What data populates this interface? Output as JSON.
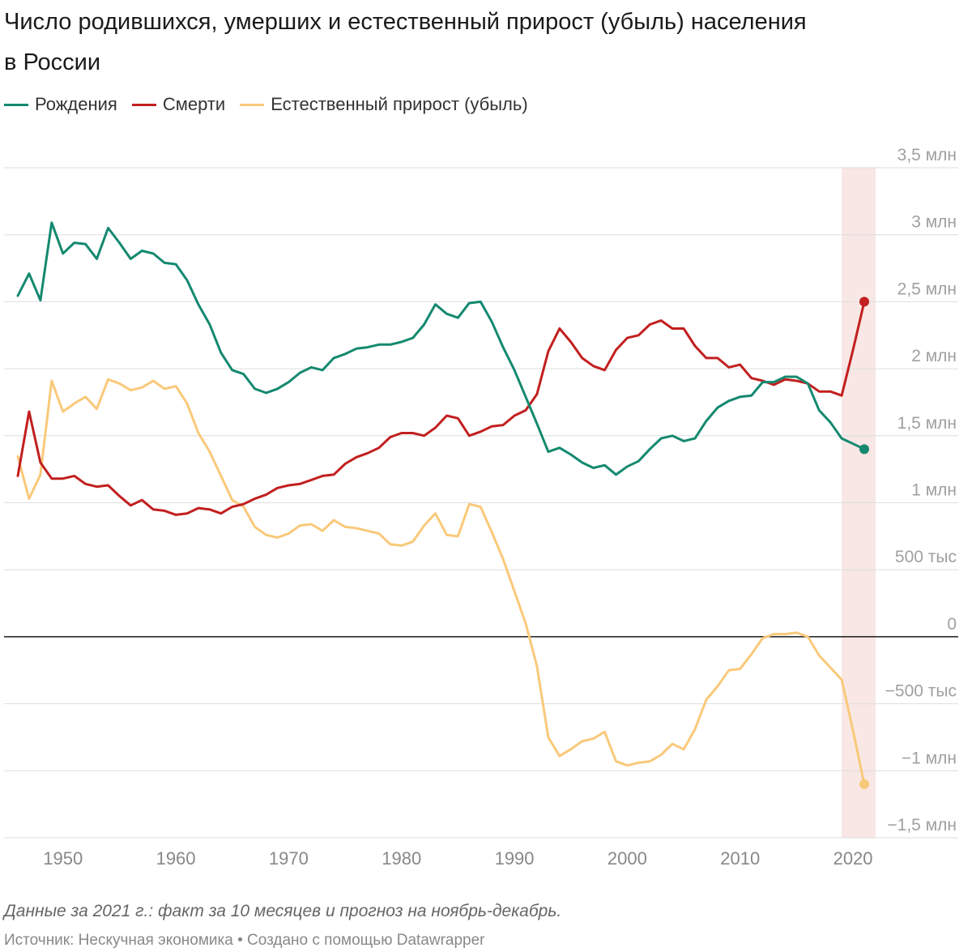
{
  "title": "Число родившихся, умерших и естественный прирост (убыль) населения в России",
  "legend": [
    {
      "label": "Рождения",
      "color": "#14896f"
    },
    {
      "label": "Смерти",
      "color": "#c21f1f"
    },
    {
      "label": "Естественный прирост (убыль)",
      "color": "#f9c97a"
    }
  ],
  "note": "Данные за 2021 г.: факт за 10 месяцев и прогноз на ноябрь-декабрь.",
  "source": "Источник: Нескучная экономика • Создано с помощью Datawrapper",
  "chart_data": {
    "type": "line",
    "x_range": [
      1946,
      2021
    ],
    "ylim": [
      -1500000,
      3500000
    ],
    "y_ticks": [
      {
        "value": 3500000,
        "label": "3,5 млн"
      },
      {
        "value": 3000000,
        "label": "3 млн"
      },
      {
        "value": 2500000,
        "label": "2,5 млн"
      },
      {
        "value": 2000000,
        "label": "2 млн"
      },
      {
        "value": 1500000,
        "label": "1,5 млн"
      },
      {
        "value": 1000000,
        "label": "1 млн"
      },
      {
        "value": 500000,
        "label": "500 тыс"
      },
      {
        "value": 0,
        "label": "0"
      },
      {
        "value": -500000,
        "label": "−500 тыс"
      },
      {
        "value": -1000000,
        "label": "−1 млн"
      },
      {
        "value": -1500000,
        "label": "−1,5 млн"
      }
    ],
    "x_ticks": [
      1950,
      1960,
      1970,
      1980,
      1990,
      2000,
      2010,
      2020
    ],
    "highlight_range": [
      2019,
      2022
    ],
    "grid": true,
    "legend_position": "top-left",
    "series": [
      {
        "name": "Рождения",
        "color": "#14896f",
        "x": [
          1946,
          1947,
          1948,
          1949,
          1950,
          1951,
          1952,
          1953,
          1954,
          1955,
          1956,
          1957,
          1958,
          1959,
          1960,
          1961,
          1962,
          1963,
          1964,
          1965,
          1966,
          1967,
          1968,
          1969,
          1970,
          1971,
          1972,
          1973,
          1974,
          1975,
          1976,
          1977,
          1978,
          1979,
          1980,
          1981,
          1982,
          1983,
          1984,
          1985,
          1986,
          1987,
          1988,
          1989,
          1990,
          1991,
          1992,
          1993,
          1994,
          1995,
          1996,
          1997,
          1998,
          1999,
          2000,
          2001,
          2002,
          2003,
          2004,
          2005,
          2006,
          2007,
          2008,
          2009,
          2010,
          2011,
          2012,
          2013,
          2014,
          2015,
          2016,
          2017,
          2018,
          2019,
          2020,
          2021
        ],
        "values": [
          2545000,
          2710000,
          2510000,
          3090000,
          2860000,
          2940000,
          2930000,
          2820000,
          3050000,
          2940000,
          2820000,
          2880000,
          2860000,
          2790000,
          2780000,
          2660000,
          2480000,
          2330000,
          2120000,
          1990000,
          1960000,
          1850000,
          1820000,
          1850000,
          1900000,
          1970000,
          2010000,
          1990000,
          2080000,
          2110000,
          2150000,
          2160000,
          2180000,
          2180000,
          2200000,
          2230000,
          2330000,
          2480000,
          2410000,
          2380000,
          2490000,
          2500000,
          2350000,
          2160000,
          1990000,
          1790000,
          1590000,
          1380000,
          1410000,
          1360000,
          1300000,
          1260000,
          1280000,
          1210000,
          1270000,
          1310000,
          1400000,
          1480000,
          1500000,
          1460000,
          1480000,
          1610000,
          1710000,
          1760000,
          1790000,
          1800000,
          1900000,
          1900000,
          1940000,
          1940000,
          1890000,
          1690000,
          1600000,
          1480000,
          1440000,
          1400000
        ]
      },
      {
        "name": "Смерти",
        "color": "#c21f1f",
        "x": [
          1946,
          1947,
          1948,
          1949,
          1950,
          1951,
          1952,
          1953,
          1954,
          1955,
          1956,
          1957,
          1958,
          1959,
          1960,
          1961,
          1962,
          1963,
          1964,
          1965,
          1966,
          1967,
          1968,
          1969,
          1970,
          1971,
          1972,
          1973,
          1974,
          1975,
          1976,
          1977,
          1978,
          1979,
          1980,
          1981,
          1982,
          1983,
          1984,
          1985,
          1986,
          1987,
          1988,
          1989,
          1990,
          1991,
          1992,
          1993,
          1994,
          1995,
          1996,
          1997,
          1998,
          1999,
          2000,
          2001,
          2002,
          2003,
          2004,
          2005,
          2006,
          2007,
          2008,
          2009,
          2010,
          2011,
          2012,
          2013,
          2014,
          2015,
          2016,
          2017,
          2018,
          2019,
          2020,
          2021
        ],
        "values": [
          1200000,
          1680000,
          1300000,
          1180000,
          1180000,
          1200000,
          1140000,
          1120000,
          1130000,
          1050000,
          980000,
          1020000,
          950000,
          940000,
          910000,
          920000,
          960000,
          950000,
          920000,
          970000,
          990000,
          1030000,
          1060000,
          1110000,
          1130000,
          1140000,
          1170000,
          1200000,
          1210000,
          1290000,
          1340000,
          1370000,
          1410000,
          1490000,
          1520000,
          1520000,
          1500000,
          1560000,
          1650000,
          1630000,
          1500000,
          1530000,
          1570000,
          1580000,
          1650000,
          1690000,
          1810000,
          2130000,
          2300000,
          2200000,
          2080000,
          2020000,
          1990000,
          2140000,
          2230000,
          2250000,
          2330000,
          2360000,
          2300000,
          2300000,
          2170000,
          2080000,
          2080000,
          2010000,
          2030000,
          1930000,
          1910000,
          1880000,
          1920000,
          1910000,
          1890000,
          1830000,
          1830000,
          1800000,
          2140000,
          2500000
        ]
      },
      {
        "name": "Естественный прирост (убыль)",
        "color": "#f9c97a",
        "x": [
          1946,
          1947,
          1948,
          1949,
          1950,
          1951,
          1952,
          1953,
          1954,
          1955,
          1956,
          1957,
          1958,
          1959,
          1960,
          1961,
          1962,
          1963,
          1964,
          1965,
          1966,
          1967,
          1968,
          1969,
          1970,
          1971,
          1972,
          1973,
          1974,
          1975,
          1976,
          1977,
          1978,
          1979,
          1980,
          1981,
          1982,
          1983,
          1984,
          1985,
          1986,
          1987,
          1988,
          1989,
          1990,
          1991,
          1992,
          1993,
          1994,
          1995,
          1996,
          1997,
          1998,
          1999,
          2000,
          2001,
          2002,
          2003,
          2004,
          2005,
          2006,
          2007,
          2008,
          2009,
          2010,
          2011,
          2012,
          2013,
          2014,
          2015,
          2016,
          2017,
          2018,
          2019,
          2020,
          2021
        ],
        "values": [
          1345000,
          1030000,
          1210000,
          1910000,
          1680000,
          1740000,
          1790000,
          1700000,
          1920000,
          1890000,
          1840000,
          1860000,
          1910000,
          1850000,
          1870000,
          1740000,
          1520000,
          1380000,
          1200000,
          1020000,
          970000,
          820000,
          760000,
          740000,
          770000,
          830000,
          840000,
          790000,
          870000,
          820000,
          810000,
          790000,
          770000,
          690000,
          680000,
          710000,
          830000,
          920000,
          760000,
          750000,
          990000,
          970000,
          780000,
          580000,
          340000,
          100000,
          -220000,
          -750000,
          -890000,
          -840000,
          -780000,
          -760000,
          -710000,
          -930000,
          -960000,
          -940000,
          -930000,
          -880000,
          -800000,
          -840000,
          -690000,
          -470000,
          -370000,
          -250000,
          -240000,
          -130000,
          -10000,
          20000,
          20000,
          30000,
          0,
          -140000,
          -230000,
          -320000,
          -700000,
          -1100000
        ]
      }
    ]
  }
}
